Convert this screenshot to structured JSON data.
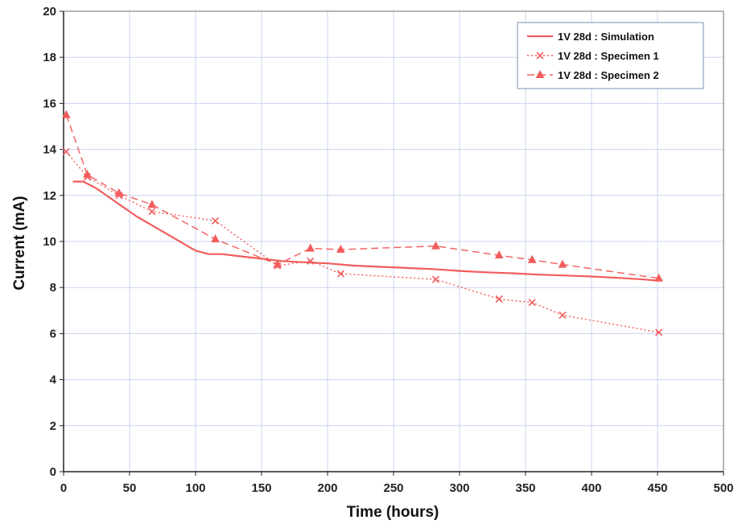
{
  "chart_data": {
    "type": "line",
    "xlabel": "Time (hours)",
    "ylabel": "Current (mA)",
    "xlim": [
      0,
      500
    ],
    "ylim": [
      0,
      20
    ],
    "x_ticks": [
      0,
      50,
      100,
      150,
      200,
      250,
      300,
      350,
      400,
      450,
      500
    ],
    "y_ticks": [
      0,
      2,
      4,
      6,
      8,
      10,
      12,
      14,
      16,
      18,
      20
    ],
    "grid": true,
    "legend_position": "top-right",
    "series": [
      {
        "name": "1V 28d : Simulation",
        "style": "solid",
        "marker": "none",
        "color": "#f25c5c",
        "x": [
          7,
          15,
          25,
          40,
          55,
          70,
          85,
          100,
          110,
          120,
          135,
          150,
          165,
          180,
          200,
          220,
          240,
          260,
          280,
          300,
          320,
          340,
          360,
          380,
          400,
          420,
          440,
          450
        ],
        "y": [
          12.6,
          12.6,
          12.3,
          11.7,
          11.1,
          10.6,
          10.1,
          9.6,
          9.45,
          9.45,
          9.35,
          9.25,
          9.15,
          9.1,
          9.05,
          8.95,
          8.9,
          8.85,
          8.8,
          8.72,
          8.66,
          8.62,
          8.56,
          8.52,
          8.48,
          8.42,
          8.35,
          8.3
        ]
      },
      {
        "name": "1V 28d : Specimen 1",
        "style": "dotted",
        "marker": "x",
        "color": "#f25c5c",
        "x": [
          2,
          18,
          42,
          67,
          115,
          162,
          187,
          210,
          282,
          330,
          355,
          378,
          451
        ],
        "y": [
          13.9,
          12.8,
          12.0,
          11.3,
          10.9,
          8.95,
          9.15,
          8.6,
          8.35,
          7.5,
          7.35,
          6.8,
          6.05
        ]
      },
      {
        "name": "1V 28d : Specimen 2",
        "style": "dashed",
        "marker": "triangle",
        "color": "#f25c5c",
        "x": [
          2,
          18,
          42,
          67,
          115,
          162,
          187,
          210,
          282,
          330,
          355,
          378,
          451
        ],
        "y": [
          15.5,
          12.9,
          12.1,
          11.6,
          10.1,
          9.0,
          9.7,
          9.65,
          9.8,
          9.4,
          9.2,
          9.0,
          8.4
        ]
      }
    ]
  }
}
